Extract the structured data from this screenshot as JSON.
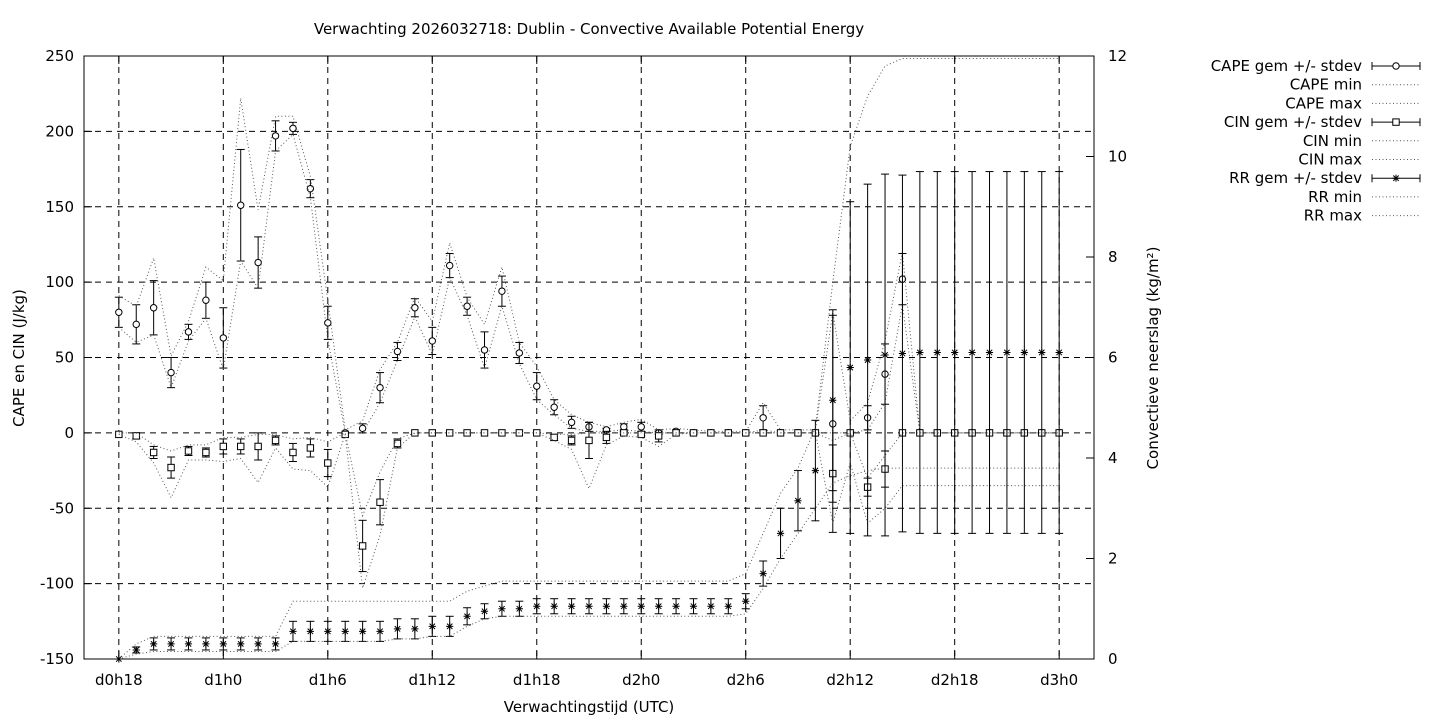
{
  "chart_data": {
    "type": "line",
    "title": "Verwachting 2026032718: Dublin - Convective Available Potential Energy",
    "xlabel": "Verwachtingstijd (UTC)",
    "ylabel": "CAPE en CIN (J/kg)",
    "y2label": "Convectieve neerslag (kg/m²)",
    "x_unit": "hours since d0h18",
    "xlim": [
      -2,
      56
    ],
    "ylim": [
      -150,
      250
    ],
    "y2lim": [
      0,
      12
    ],
    "grid": true,
    "legend_position": "outside-right",
    "x_ticks": [
      {
        "x": 0,
        "label": "d0h18"
      },
      {
        "x": 6,
        "label": "d1h0"
      },
      {
        "x": 12,
        "label": "d1h6"
      },
      {
        "x": 18,
        "label": "d1h12"
      },
      {
        "x": 24,
        "label": "d1h18"
      },
      {
        "x": 30,
        "label": "d2h0"
      },
      {
        "x": 36,
        "label": "d2h6"
      },
      {
        "x": 42,
        "label": "d2h12"
      },
      {
        "x": 48,
        "label": "d2h18"
      },
      {
        "x": 54,
        "label": "d3h0"
      }
    ],
    "y_ticks": [
      250,
      200,
      150,
      100,
      50,
      0,
      -50,
      -100,
      -150
    ],
    "y2_ticks": [
      12,
      10,
      8,
      6,
      4,
      2,
      0
    ],
    "x": [
      0,
      1,
      2,
      3,
      4,
      5,
      6,
      7,
      8,
      9,
      10,
      11,
      12,
      13,
      14,
      15,
      16,
      17,
      18,
      19,
      20,
      21,
      22,
      23,
      24,
      25,
      26,
      27,
      28,
      29,
      30,
      31,
      32,
      33,
      34,
      35,
      36,
      37,
      38,
      39,
      40,
      41,
      42,
      43,
      44,
      45,
      46,
      47,
      48,
      49,
      50,
      51,
      52,
      53,
      54
    ],
    "series": [
      {
        "name": "CAPE gem +/- stdev",
        "marker": "circle",
        "axis": "left",
        "values": [
          80,
          72,
          83,
          40,
          67,
          88,
          63,
          151,
          113,
          197,
          202,
          162,
          73,
          0,
          3,
          30,
          54,
          83,
          61,
          111,
          84,
          55,
          94,
          53,
          31,
          17,
          7,
          4,
          2,
          4,
          4,
          0,
          1,
          0,
          0,
          0,
          0,
          10,
          0,
          0,
          0,
          6,
          0,
          10,
          39,
          102,
          0,
          0,
          0,
          0,
          0,
          0,
          0,
          0,
          0
        ],
        "err": [
          10,
          13,
          18,
          10,
          5,
          12,
          20,
          37,
          17,
          10,
          4,
          6,
          11,
          0,
          3,
          10,
          6,
          6,
          9,
          8,
          6,
          12,
          10,
          7,
          9,
          5,
          4,
          3,
          1,
          2,
          3,
          1,
          1,
          1,
          0,
          0,
          0,
          8,
          0,
          0,
          0,
          72,
          0,
          8,
          20,
          17,
          0,
          0,
          0,
          0,
          0,
          0,
          0,
          0,
          0
        ]
      },
      {
        "name": "CAPE min",
        "style": "dotted",
        "axis": "left",
        "values": [
          70,
          60,
          65,
          30,
          61,
          76,
          42,
          114,
          96,
          187,
          198,
          156,
          62,
          0,
          0,
          20,
          48,
          77,
          52,
          103,
          78,
          43,
          84,
          46,
          22,
          12,
          3,
          1,
          1,
          2,
          1,
          0,
          0,
          0,
          0,
          0,
          0,
          2,
          0,
          0,
          0,
          0,
          0,
          2,
          20,
          85,
          0,
          0,
          0,
          0,
          0,
          0,
          0,
          0,
          0
        ]
      },
      {
        "name": "CAPE max",
        "style": "dotted",
        "axis": "left",
        "values": [
          91,
          84,
          116,
          51,
          74,
          110,
          101,
          222,
          148,
          210,
          210,
          170,
          88,
          2,
          8,
          42,
          60,
          90,
          74,
          126,
          90,
          72,
          110,
          60,
          44,
          22,
          12,
          7,
          4,
          7,
          9,
          2,
          3,
          2,
          1,
          1,
          1,
          20,
          2,
          2,
          2,
          80,
          8,
          20,
          61,
          120,
          0,
          0,
          0,
          0,
          0,
          0,
          0,
          0,
          0
        ]
      },
      {
        "name": "CIN gem +/- stdev",
        "marker": "square",
        "axis": "left",
        "values": [
          -1,
          -2,
          -13,
          -23,
          -12,
          -13,
          -9,
          -9,
          -9,
          -5,
          -13,
          -10,
          -20,
          -1,
          -75,
          -46,
          -7,
          0,
          0,
          0,
          0,
          0,
          0,
          0,
          0,
          -3,
          -5,
          -5,
          -3,
          0,
          -1,
          -2,
          0,
          0,
          0,
          0,
          0,
          0,
          0,
          0,
          0,
          -27,
          0,
          -36,
          -24,
          0,
          0,
          0,
          0,
          0,
          0,
          0,
          0,
          0,
          0
        ],
        "err": [
          0,
          2,
          4,
          7,
          3,
          3,
          5,
          5,
          9,
          3,
          6,
          6,
          9,
          0,
          17,
          15,
          3,
          0,
          0,
          0,
          0,
          0,
          0,
          0,
          0,
          2,
          3,
          12,
          4,
          1,
          1,
          4,
          0,
          0,
          0,
          0,
          0,
          0,
          0,
          0,
          0,
          19,
          0,
          6,
          12,
          0,
          0,
          0,
          0,
          0,
          0,
          0,
          0,
          0,
          0
        ]
      },
      {
        "name": "CIN min",
        "style": "dotted",
        "axis": "left",
        "values": [
          -1,
          -6,
          -20,
          -43,
          -18,
          -18,
          -19,
          -17,
          -33,
          -10,
          -24,
          -25,
          -36,
          -1,
          -103,
          -68,
          -10,
          0,
          0,
          0,
          0,
          0,
          0,
          0,
          0,
          -5,
          -11,
          -37,
          -8,
          -2,
          -3,
          -9,
          -1,
          0,
          0,
          0,
          0,
          0,
          0,
          0,
          0,
          -60,
          -20,
          -60,
          -50,
          -35,
          -35,
          -35,
          -35,
          -35,
          -35,
          -35,
          -35,
          -35,
          -35
        ]
      },
      {
        "name": "CIN max",
        "style": "dotted",
        "axis": "left",
        "values": [
          0,
          0,
          -8,
          -12,
          -8,
          -8,
          -3,
          -3,
          -1,
          -1,
          -4,
          -3,
          -6,
          0,
          -55,
          -26,
          -4,
          0,
          0,
          0,
          0,
          0,
          0,
          0,
          0,
          -1,
          -1,
          0,
          0,
          0,
          0,
          0,
          0,
          0,
          0,
          0,
          0,
          0,
          0,
          0,
          0,
          -5,
          0,
          -30,
          -15,
          0,
          0,
          0,
          0,
          0,
          0,
          0,
          0,
          0,
          0
        ]
      },
      {
        "name": "RR gem +/- stdev",
        "marker": "star",
        "axis": "right",
        "values": [
          0,
          0.18,
          0.3,
          0.3,
          0.3,
          0.3,
          0.3,
          0.3,
          0.3,
          0.3,
          0.55,
          0.55,
          0.55,
          0.55,
          0.55,
          0.55,
          0.6,
          0.6,
          0.65,
          0.65,
          0.85,
          0.95,
          1.0,
          1.0,
          1.05,
          1.05,
          1.05,
          1.05,
          1.05,
          1.05,
          1.05,
          1.05,
          1.05,
          1.05,
          1.05,
          1.05,
          1.15,
          1.7,
          2.5,
          3.15,
          3.75,
          5.15,
          5.8,
          5.95,
          6.05,
          6.08,
          6.1,
          6.1,
          6.1,
          6.1,
          6.1,
          6.1,
          6.1,
          6.1,
          6.1
        ],
        "err": [
          0,
          0.06,
          0.12,
          0.12,
          0.12,
          0.12,
          0.12,
          0.12,
          0.12,
          0.12,
          0.2,
          0.2,
          0.2,
          0.2,
          0.2,
          0.2,
          0.2,
          0.2,
          0.2,
          0.2,
          0.17,
          0.15,
          0.15,
          0.15,
          0.15,
          0.15,
          0.15,
          0.15,
          0.15,
          0.15,
          0.15,
          0.15,
          0.15,
          0.15,
          0.15,
          0.15,
          0.15,
          0.25,
          0.5,
          0.6,
          1.0,
          1.8,
          3.3,
          3.5,
          3.6,
          3.55,
          3.6,
          3.6,
          3.6,
          3.6,
          3.6,
          3.6,
          3.6,
          3.6,
          3.6
        ]
      },
      {
        "name": "RR min",
        "style": "dotted",
        "axis": "right",
        "values": [
          0,
          0.1,
          0.15,
          0.15,
          0.15,
          0.15,
          0.15,
          0.15,
          0.15,
          0.15,
          0.35,
          0.35,
          0.35,
          0.35,
          0.35,
          0.35,
          0.4,
          0.4,
          0.45,
          0.45,
          0.65,
          0.8,
          0.85,
          0.85,
          0.85,
          0.85,
          0.85,
          0.85,
          0.85,
          0.85,
          0.85,
          0.85,
          0.85,
          0.85,
          0.85,
          0.85,
          0.9,
          1.4,
          2.0,
          2.5,
          3.0,
          3.5,
          3.65,
          3.75,
          3.8,
          3.8,
          3.8,
          3.8,
          3.8,
          3.8,
          3.8,
          3.8,
          3.8,
          3.8,
          3.8
        ]
      },
      {
        "name": "RR max",
        "style": "dotted",
        "axis": "right",
        "values": [
          0,
          0.3,
          0.45,
          0.45,
          0.45,
          0.45,
          0.45,
          0.45,
          0.45,
          0.45,
          1.15,
          1.15,
          1.15,
          1.15,
          1.15,
          1.15,
          1.15,
          1.15,
          1.15,
          1.15,
          1.35,
          1.45,
          1.55,
          1.55,
          1.55,
          1.55,
          1.55,
          1.55,
          1.55,
          1.55,
          1.55,
          1.55,
          1.55,
          1.55,
          1.55,
          1.55,
          1.7,
          2.5,
          3.3,
          3.8,
          4.6,
          7.5,
          10.2,
          11.2,
          11.8,
          11.95,
          11.95,
          11.95,
          11.95,
          11.95,
          11.95,
          11.95,
          11.95,
          11.95,
          11.95
        ]
      }
    ]
  }
}
